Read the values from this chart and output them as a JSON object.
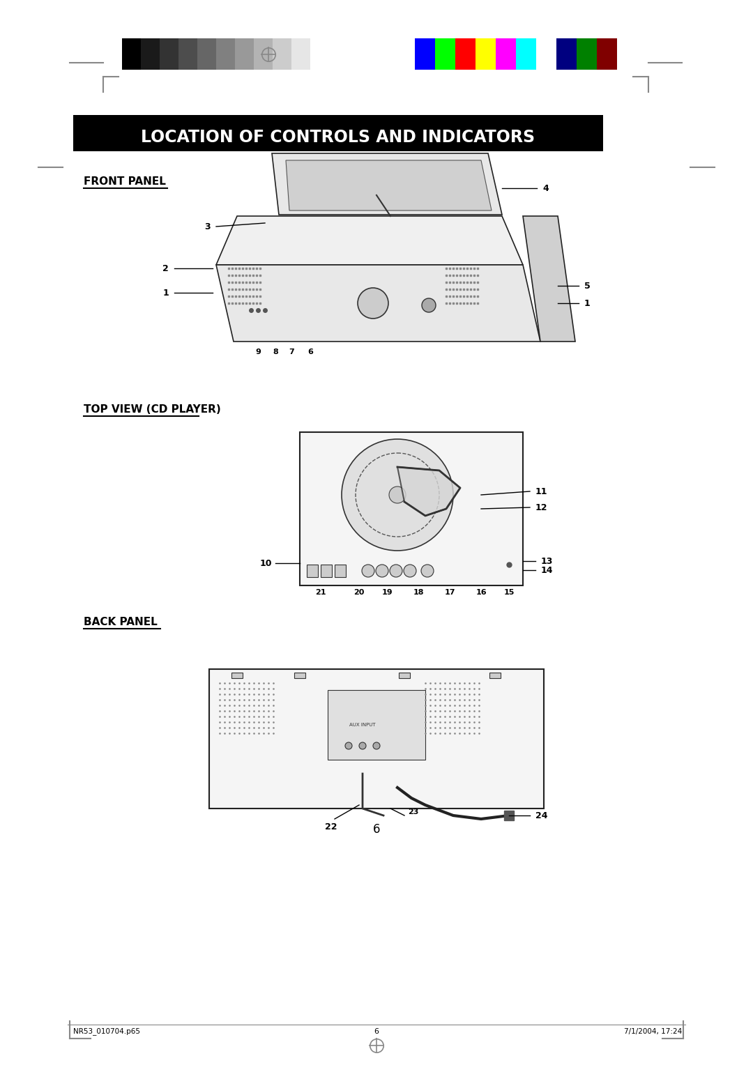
{
  "bg_color": "#ffffff",
  "page_width": 10.8,
  "page_height": 15.28,
  "title": "LOCATION OF CONTROLS AND INDICATORS",
  "title_bg": "#000000",
  "title_fg": "#ffffff",
  "section_front": "FRONT PANEL",
  "section_top": "TOP VIEW (CD PLAYER)",
  "section_back": "BACK PANEL",
  "footer_left": "NR53_010704.p65",
  "footer_center": "6",
  "footer_right": "7/1/2004, 17:24",
  "page_number": "6",
  "grayscale_colors": [
    "#000000",
    "#1a1a1a",
    "#333333",
    "#4d4d4d",
    "#666666",
    "#808080",
    "#999999",
    "#b3b3b3",
    "#cccccc",
    "#e6e6e6",
    "#ffffff"
  ],
  "color_bars": [
    "#0000ff",
    "#00ff00",
    "#ff0000",
    "#ffff00",
    "#ff00ff",
    "#00ffff",
    "#ffffff",
    "#000080",
    "#008000",
    "#800000"
  ]
}
